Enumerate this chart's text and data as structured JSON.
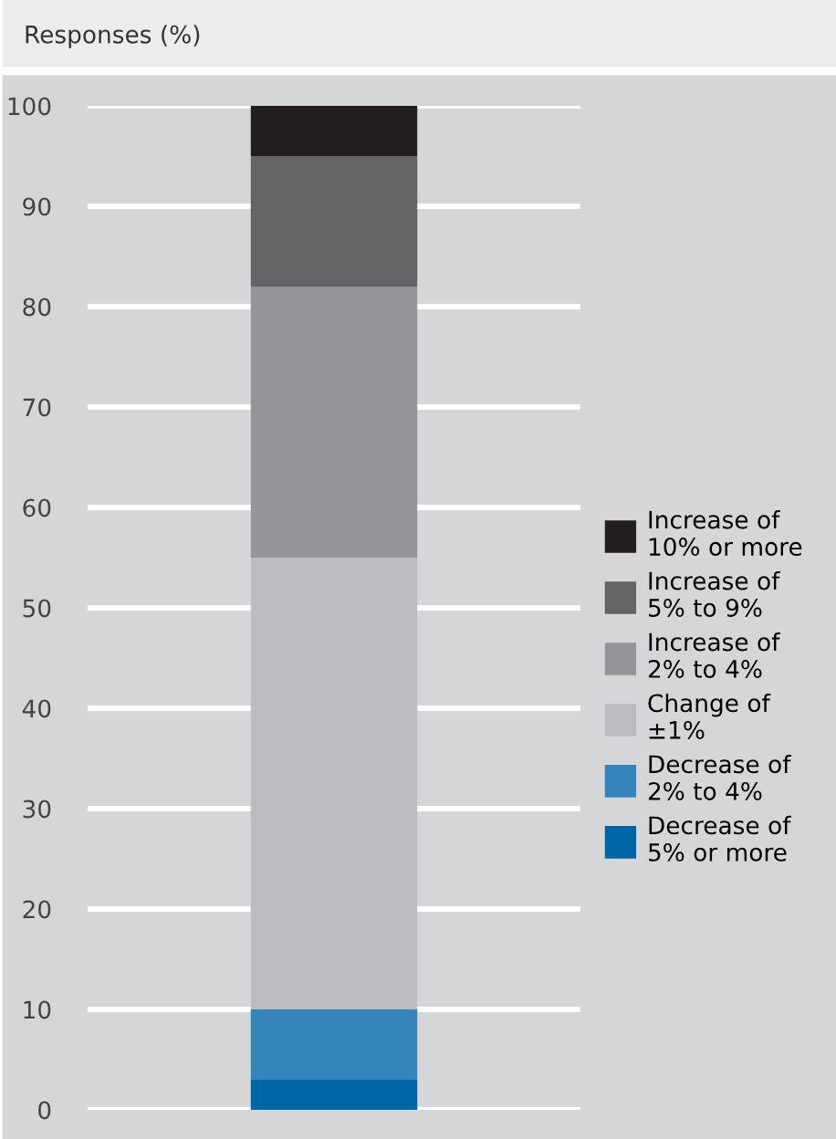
{
  "chart_data": {
    "type": "bar",
    "title": "Responses (%)",
    "stacked": true,
    "categories": [
      null
    ],
    "series": [
      {
        "name": "Decrease of\n5% or more",
        "color": "#0065a4",
        "values": [
          3
        ]
      },
      {
        "name": "Decrease of\n2% to 4%",
        "color": "#3584bb",
        "values": [
          7
        ]
      },
      {
        "name": "Change of\n±1%",
        "color": "#bbbcc0",
        "values": [
          45
        ]
      },
      {
        "name": "Increase of\n2% to 4%",
        "color": "#939598",
        "values": [
          27
        ]
      },
      {
        "name": "Increase of\n5% to 9%",
        "color": "#646466",
        "values": [
          13
        ]
      },
      {
        "name": "Increase of\n10% or more",
        "color": "#231f20",
        "values": [
          5
        ]
      }
    ],
    "ylim": [
      0,
      100
    ],
    "yticks": [
      0,
      10,
      20,
      30,
      40,
      50,
      60,
      70,
      80,
      90,
      100
    ],
    "grid": "y",
    "legend": "right",
    "tick_labels": "y"
  }
}
